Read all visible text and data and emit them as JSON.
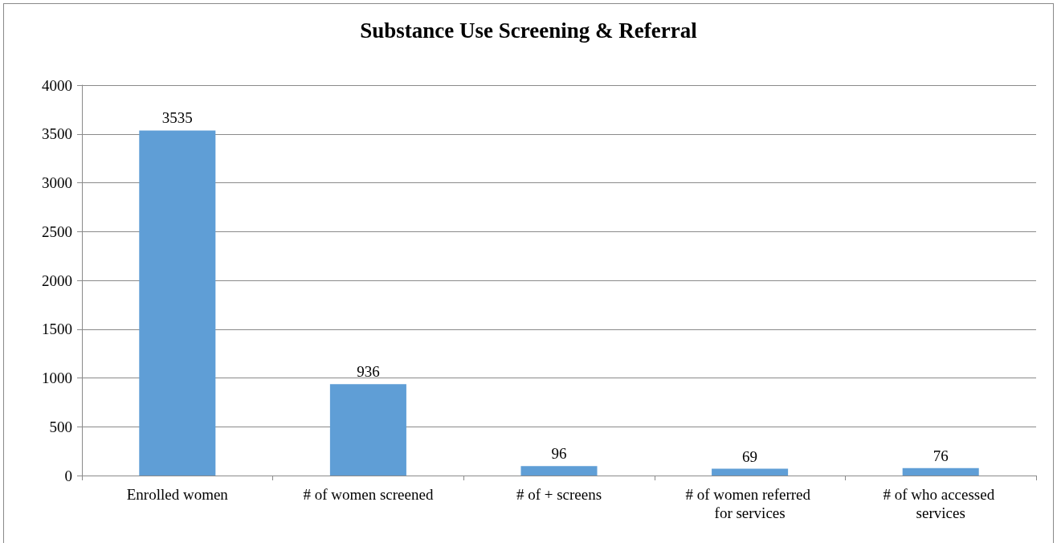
{
  "chart_data": {
    "type": "bar",
    "title": "Substance Use Screening & Referral",
    "categories": [
      "Enrolled women",
      "# of women screened",
      "# of + screens",
      "# of women referred for services",
      "# of who accessed services"
    ],
    "values": [
      3535,
      936,
      96,
      69,
      76
    ],
    "color": "#5f9ed6",
    "ylim": [
      0,
      4000
    ],
    "yticks": [
      0,
      500,
      1000,
      1500,
      2000,
      2500,
      3000,
      3500,
      4000
    ],
    "grid": "y",
    "data_labels": true
  }
}
